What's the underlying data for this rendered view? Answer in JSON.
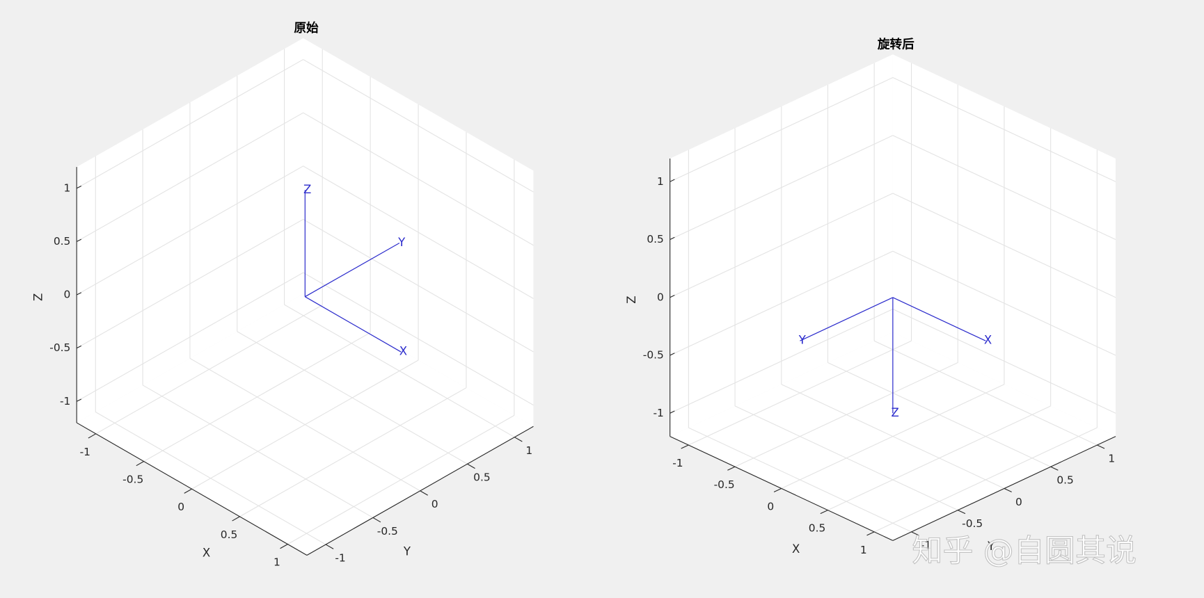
{
  "chart_data": [
    {
      "type": "line3d",
      "title": "原始",
      "xlabel": "X",
      "ylabel": "Y",
      "zlabel": "Z",
      "xlim": [
        -1.2,
        1.2
      ],
      "ylim": [
        -1.2,
        1.2
      ],
      "zlim": [
        -1.2,
        1.2
      ],
      "xticks": [
        -1,
        -0.5,
        0,
        0.5,
        1
      ],
      "yticks": [
        -1,
        -0.5,
        0,
        0.5,
        1
      ],
      "zticks": [
        -1,
        -0.5,
        0,
        0.5,
        1
      ],
      "grid": true,
      "series": [
        {
          "name": "X",
          "color": "#2b2bcc",
          "x": [
            0,
            1
          ],
          "y": [
            0,
            0
          ],
          "z": [
            0,
            0
          ]
        },
        {
          "name": "Y",
          "color": "#2b2bcc",
          "x": [
            0,
            0
          ],
          "y": [
            0,
            1
          ],
          "z": [
            0,
            0
          ]
        },
        {
          "name": "Z",
          "color": "#2b2bcc",
          "x": [
            0,
            0
          ],
          "y": [
            0,
            0
          ],
          "z": [
            0,
            1
          ]
        }
      ]
    },
    {
      "type": "line3d",
      "title": "旋转后",
      "xlabel": "X",
      "ylabel": "Y",
      "zlabel": "Z",
      "xlim": [
        -1.2,
        1.2
      ],
      "ylim": [
        -1.2,
        1.2
      ],
      "zlim": [
        -1.2,
        1.2
      ],
      "xticks": [
        -1,
        -0.5,
        0,
        0.5,
        1
      ],
      "yticks": [
        -1,
        -0.5,
        0,
        0.5,
        1
      ],
      "zticks": [
        -1,
        -0.5,
        0,
        0.5,
        1
      ],
      "grid": true,
      "series": [
        {
          "name": "X",
          "color": "#2b2bcc",
          "x": [
            0,
            1
          ],
          "y": [
            0,
            0
          ],
          "z": [
            0,
            0
          ]
        },
        {
          "name": "Y",
          "color": "#2b2bcc",
          "x": [
            0,
            0
          ],
          "y": [
            0,
            -1
          ],
          "z": [
            0,
            0
          ]
        },
        {
          "name": "Z",
          "color": "#2b2bcc",
          "x": [
            0,
            0
          ],
          "y": [
            0,
            0
          ],
          "z": [
            0,
            -1
          ]
        }
      ]
    }
  ],
  "watermark": "知乎 @自圆其说"
}
